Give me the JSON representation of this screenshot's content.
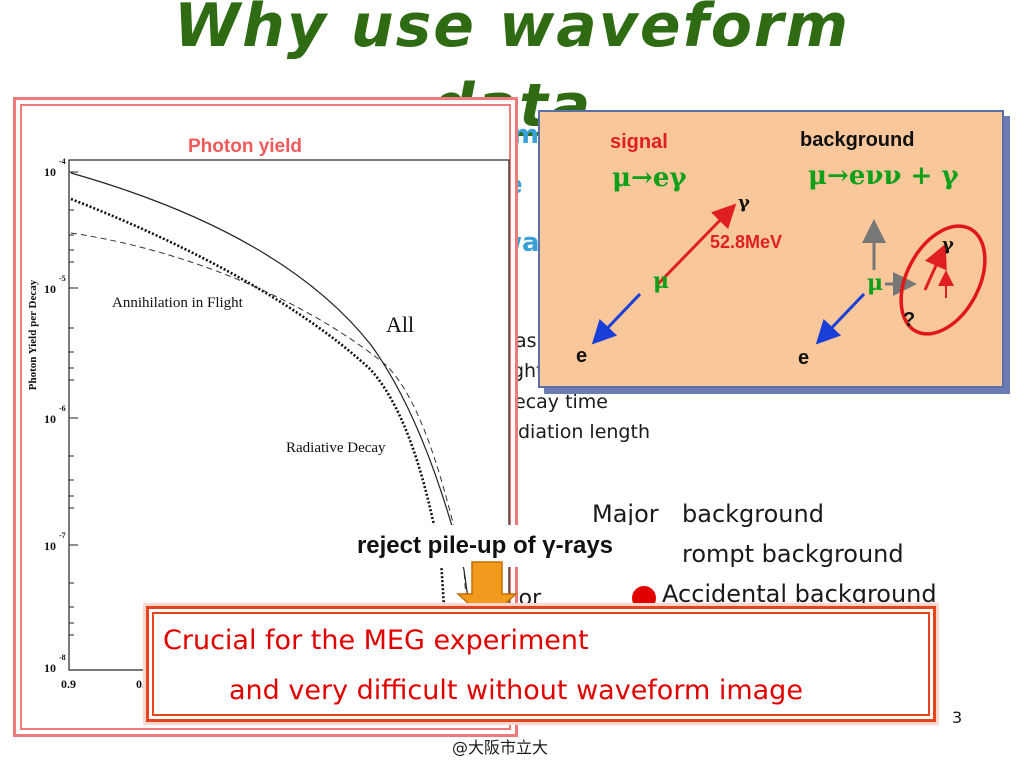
{
  "title": {
    "line1": "Why use waveform",
    "line2": "data"
  },
  "background_slide": {
    "fragments": [
      "as",
      "ght",
      "ecay time",
      "diation length",
      "Major",
      "background",
      "rompt background",
      "Accidental background",
      "tor",
      "@大阪市立大"
    ],
    "blue_fragments": [
      "m",
      "e",
      "wa"
    ],
    "page_number": "3"
  },
  "photon_panel": {
    "title": "Photon yield",
    "y_axis_label": "Photon Yield per Decay",
    "y_ticks": [
      "10",
      "10",
      "10",
      "10",
      "10"
    ],
    "y_tick_exponents": [
      "-4",
      "-5",
      "-6",
      "-7",
      "-8"
    ],
    "x_ticks": [
      "0.9",
      "0."
    ],
    "curve_labels": [
      "Annihilation in Flight",
      "All",
      "Radiative Decay"
    ]
  },
  "diagram": {
    "signal_label": "signal",
    "background_label": "background",
    "signal_process": "μ→eγ",
    "background_process": "μ→eνν + γ",
    "energy_label": "52.8MeV",
    "mu": "μ",
    "gamma": "γ",
    "electron": "e",
    "question": "?",
    "colors": {
      "signal_red": "#e02020",
      "process_green": "#0fa01a",
      "muon_green": "#0fa01a",
      "electron_blue": "#1a3fd8",
      "panel_fill": "#f9c79a"
    }
  },
  "reject_label": "reject pile-up of γ-rays",
  "crucial": {
    "line1": "Crucial for the MEG experiment",
    "line2": "and very difficult without waveform image"
  }
}
